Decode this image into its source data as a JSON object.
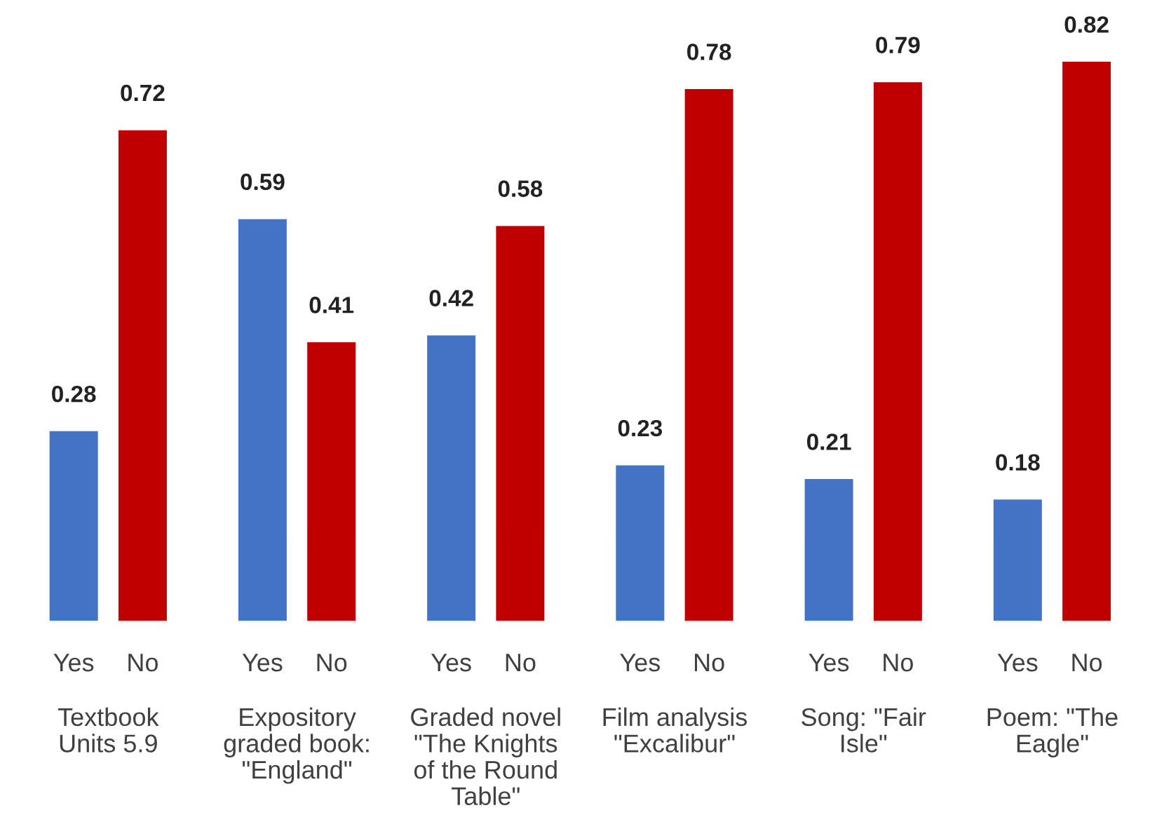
{
  "chart_data": {
    "type": "bar",
    "categories": [
      "Textbook\nUnits 5.9",
      "Expository\ngraded book:\n\"England\"",
      "Graded novel\n\"The Knights\nof the Round\nTable\"",
      "Film analysis\n\"Excalibur\"",
      "Song: \"Fair\nIsle\"",
      "Poem: \"The\nEagle\""
    ],
    "series": [
      {
        "name": "Yes",
        "color": "#4472c4",
        "values": [
          0.28,
          0.59,
          0.42,
          0.23,
          0.21,
          0.18
        ]
      },
      {
        "name": "No",
        "color": "#c00000",
        "values": [
          0.72,
          0.41,
          0.58,
          0.78,
          0.79,
          0.82
        ]
      }
    ],
    "data_labels": true,
    "legend": false
  }
}
